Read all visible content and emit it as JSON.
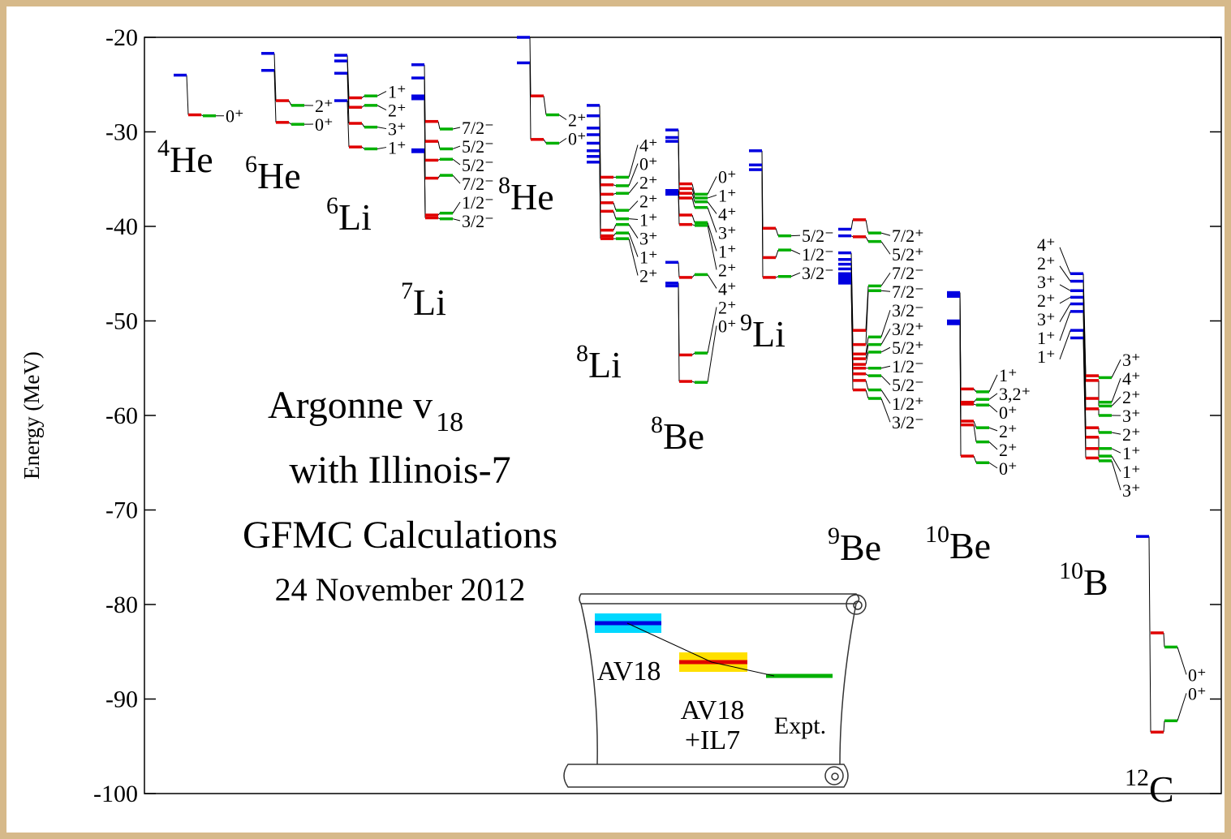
{
  "chart_data": {
    "type": "levels",
    "y_label": "Energy (MeV)",
    "ylim": [
      -100,
      -20
    ],
    "yticks": [
      -100,
      -90,
      -80,
      -70,
      -60,
      -50,
      -40,
      -30,
      -20
    ],
    "annotation": {
      "title": "Argonne v",
      "title_sub": "18",
      "lines": [
        "with Illinois-7",
        "GFMC Calculations",
        "24 November 2012"
      ]
    },
    "series": [
      {
        "legend": [
          "AV18"
        ],
        "color": "#0000e0",
        "band": "#00d8ff"
      },
      {
        "legend": [
          "AV18",
          "+IL7"
        ],
        "color": "#e00000",
        "band": "#ffe000"
      },
      {
        "legend": [
          "Expt."
        ],
        "color": "#00b000",
        "band": "#a8f0a8"
      }
    ],
    "nuclei": [
      {
        "mass": "4",
        "symbol": "He",
        "labels": [
          "0⁺"
        ],
        "levels": [
          [
            -24.0
          ],
          [
            -28.2
          ],
          [
            -28.3
          ]
        ]
      },
      {
        "mass": "6",
        "symbol": "He",
        "labels": [
          "2⁺",
          "0⁺"
        ],
        "levels": [
          [
            -21.7,
            -23.5
          ],
          [
            -26.7,
            -29.0
          ],
          [
            -27.2,
            -29.2
          ]
        ]
      },
      {
        "mass": "6",
        "symbol": "Li",
        "labels": [
          "1⁺",
          "2⁺",
          "3⁺",
          "1⁺"
        ],
        "levels": [
          [
            -21.9,
            -22.5,
            -23.8,
            -26.7
          ],
          [
            -26.4,
            -27.4,
            -29.1,
            -31.6
          ],
          [
            -26.2,
            -27.2,
            -29.5,
            -31.8
          ]
        ]
      },
      {
        "mass": "7",
        "symbol": "Li",
        "labels": [
          "7/2⁻",
          "5/2⁻",
          "5/2⁻",
          "7/2⁻",
          "1/2⁻",
          "3/2⁻"
        ],
        "levels": [
          [
            -22.9,
            -24.3,
            -26.2,
            -26.5,
            -31.9,
            -32.1
          ],
          [
            -28.9,
            -31.0,
            -33.0,
            -34.9,
            -38.8,
            -39.1
          ],
          [
            -29.7,
            -31.8,
            -32.9,
            -34.6,
            -38.6,
            -39.2
          ]
        ]
      },
      {
        "mass": "8",
        "symbol": "He",
        "labels": [
          "2⁺",
          "0⁺"
        ],
        "levels": [
          [
            -20.0,
            -22.7
          ],
          [
            -26.2,
            -30.8
          ],
          [
            -28.2,
            -31.2
          ]
        ]
      },
      {
        "mass": "8",
        "symbol": "Li",
        "labels": [
          "4⁺",
          "0⁺",
          "2⁺",
          "2⁺",
          "1⁺",
          "3⁺",
          "1⁺",
          "2⁺"
        ],
        "levels": [
          [
            -27.2,
            -28.3,
            -29.6,
            -30.3,
            -31.2,
            -32.0,
            -32.6,
            -33.2
          ],
          [
            -34.8,
            -35.6,
            -36.6,
            -37.5,
            -38.4,
            -40.4,
            -41.0,
            -41.3
          ],
          [
            -34.8,
            -35.7,
            -36.5,
            -38.3,
            -39.2,
            -39.8,
            -40.7,
            -41.3
          ]
        ]
      },
      {
        "mass": "8",
        "symbol": "Be",
        "labels": [
          "0⁺",
          "1⁺",
          "4⁺",
          "3⁺",
          "1⁺",
          "2⁺",
          "4⁺",
          "2⁺",
          "0⁺"
        ],
        "levels": [
          [
            -29.8,
            -30.6,
            -31.0,
            -36.2,
            -36.4,
            -36.6,
            -43.8,
            -46.0,
            -46.3
          ],
          [
            -35.5,
            -36.0,
            -36.5,
            -37.0,
            -38.8,
            -39.8,
            -45.4,
            -53.6,
            -56.4
          ],
          [
            -36.6,
            -37.0,
            -37.4,
            -38.0,
            -39.6,
            -39.9,
            -45.1,
            -53.4,
            -56.5
          ]
        ]
      },
      {
        "mass": "9",
        "symbol": "Li",
        "labels": [
          "5/2⁻",
          "1/2⁻",
          "3/2⁻"
        ],
        "levels": [
          [
            -32.0,
            -33.5,
            -34.0
          ],
          [
            -40.2,
            -43.3,
            -45.4
          ],
          [
            -41.0,
            -42.5,
            -45.3
          ]
        ]
      },
      {
        "mass": "9",
        "symbol": "Be",
        "labels": [
          "7/2⁺",
          "5/2⁺",
          "7/2⁻",
          "7/2⁻",
          "3/2⁻",
          "3/2⁺",
          "5/2⁺",
          "1/2⁻",
          "5/2⁻",
          "1/2⁺",
          "3/2⁻"
        ],
        "levels": [
          [
            -40.3,
            -41.0,
            -42.8,
            -43.5,
            -44.0,
            -44.5,
            -45.0,
            -45.3,
            -45.6,
            -45.8,
            -46.0
          ],
          [
            -39.3,
            -41.1,
            -51.0,
            -52.5,
            -53.5,
            -54.0,
            -54.6,
            -55.0,
            -55.6,
            -56.3,
            -57.3
          ],
          [
            -40.7,
            -41.6,
            -46.3,
            -46.8,
            -51.7,
            -52.5,
            -53.3,
            -55.0,
            -55.8,
            -57.3,
            -58.2
          ]
        ]
      },
      {
        "mass": "10",
        "symbol": "Be",
        "labels": [
          "1⁺",
          "3,2⁺",
          "0⁺",
          "2⁺",
          "2⁺",
          "0⁺"
        ],
        "levels": [
          [
            -47.0,
            -47.2,
            -47.4,
            -50.0,
            -50.1,
            -50.3
          ],
          [
            -57.2,
            -58.6,
            -58.8,
            -60.6,
            -61.0,
            -64.3
          ],
          [
            -57.5,
            -58.3,
            -58.9,
            -61.3,
            -62.8,
            -65.0
          ]
        ]
      },
      {
        "mass": "10",
        "symbol": "B",
        "left_labels": [
          "4⁺",
          "2⁺",
          "3⁺",
          "2⁺",
          "3⁺",
          "1⁺",
          "1⁺"
        ],
        "labels": [
          "3⁺",
          "4⁺",
          "2⁺",
          "3⁺",
          "2⁺",
          "1⁺",
          "1⁺",
          "3⁺"
        ],
        "levels": [
          [
            -45.0,
            -45.8,
            -46.8,
            -47.5,
            -48.2,
            -49.0,
            -51.0,
            -51.8
          ],
          [
            -55.8,
            -56.3,
            -58.2,
            -59.3,
            -61.3,
            -62.3,
            -63.5,
            -64.5
          ],
          [
            -56.0,
            -58.6,
            -59.0,
            -60.0,
            -61.8,
            -63.5,
            -64.3,
            -64.8
          ]
        ]
      },
      {
        "mass": "12",
        "symbol": "C",
        "labels": [
          "0⁺",
          "0⁺"
        ],
        "levels": [
          [
            null,
            -72.8
          ],
          [
            -83.0,
            -93.5
          ],
          [
            -84.5,
            -92.3
          ]
        ]
      }
    ]
  }
}
